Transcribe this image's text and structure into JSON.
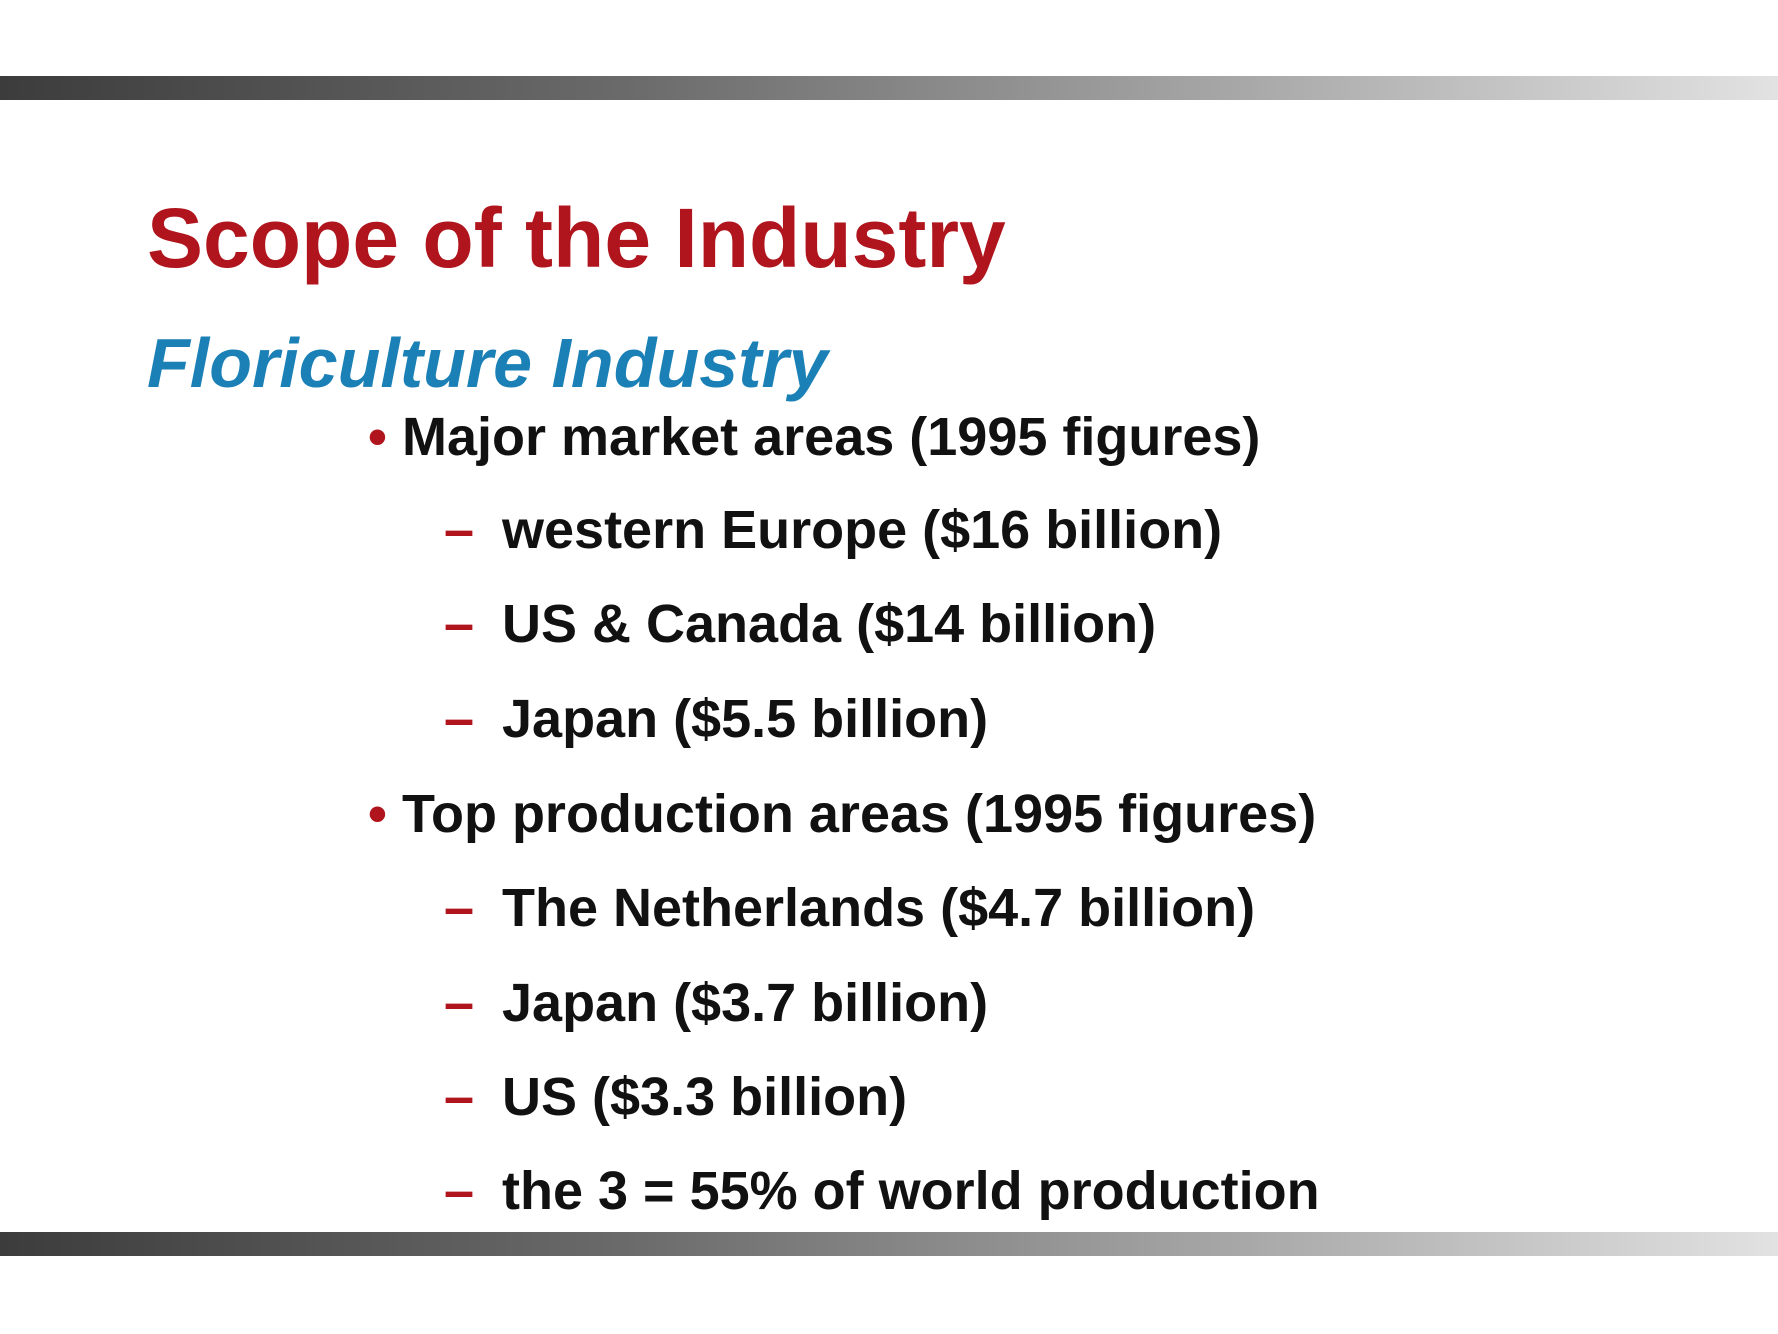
{
  "slide": {
    "title": "Scope of the Industry",
    "subtitle": "Floriculture Industry",
    "bullet_marker": "•",
    "dash_marker": "–",
    "bullets": [
      {
        "text": "Major market areas (1995 figures)",
        "subitems": [
          "western Europe ($16 billion)",
          "US & Canada ($14 billion)",
          "Japan ($5.5 billion)"
        ]
      },
      {
        "text": "Top production areas (1995 figures)",
        "subitems": [
          "The Netherlands ($4.7 billion)",
          "Japan ($3.7 billion)",
          "US ($3.3 billion)",
          "the 3 = 55% of world production"
        ]
      }
    ]
  },
  "colors": {
    "title": "#b0141c",
    "subtitle": "#1a80b6",
    "body_text": "#111111",
    "marker": "#b0141c"
  }
}
